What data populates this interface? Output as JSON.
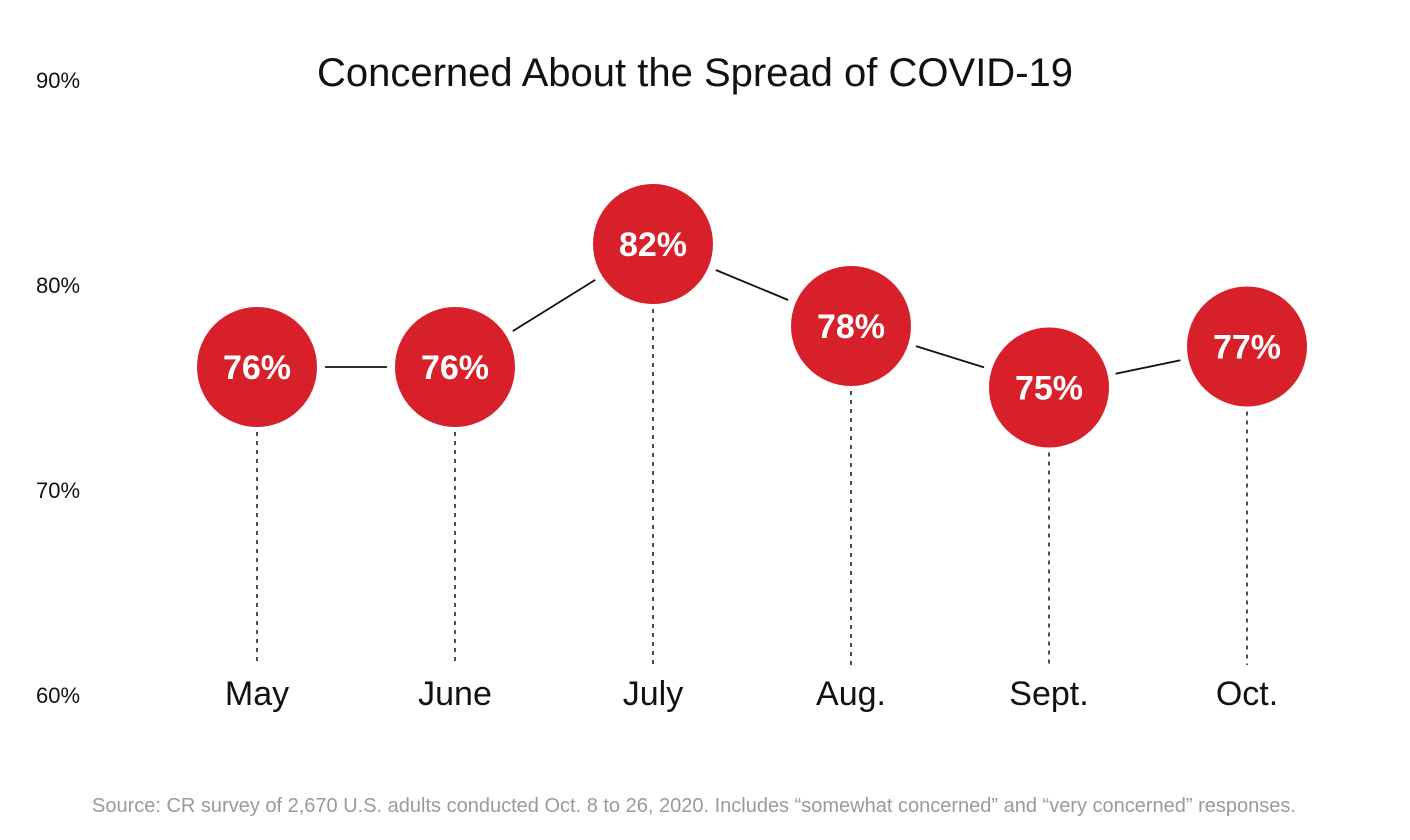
{
  "chart_data": {
    "type": "line",
    "title": "Concerned About the Spread of COVID-19",
    "categories": [
      "May",
      "June",
      "July",
      "Aug.",
      "Sept.",
      "Oct."
    ],
    "series": [
      {
        "values": [
          76,
          76,
          82,
          78,
          75,
          77
        ],
        "labels": [
          "76%",
          "76%",
          "82%",
          "78%",
          "75%",
          "77%"
        ],
        "color": "#d7202a"
      }
    ],
    "ylim": [
      60,
      90
    ],
    "yticks": [
      60,
      70,
      80,
      90
    ],
    "ytick_labels": [
      "60%",
      "70%",
      "80%",
      "90%"
    ],
    "grid": false,
    "xlabel": "",
    "ylabel": "",
    "source": "Source: CR survey of 2,670 U.S. adults conducted Oct. 8 to 26, 2020. Includes “somewhat concerned” and “very concerned” responses."
  }
}
